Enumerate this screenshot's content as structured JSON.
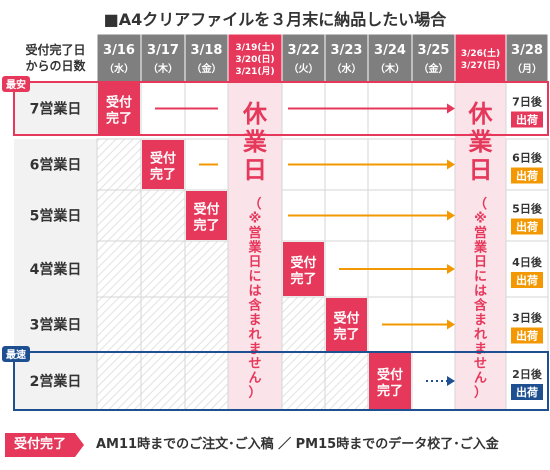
{
  "title": "■A4クリアファイルを３月末に納品したい場合",
  "corner_header": [
    "受付完了日",
    "からの日数"
  ],
  "date_columns": [
    {
      "date": "3/16",
      "weekday": "（水）",
      "holiday": false
    },
    {
      "date": "3/17",
      "weekday": "（木）",
      "holiday": false
    },
    {
      "date": "3/18",
      "weekday": "（金）",
      "holiday": false
    },
    {
      "lines": [
        "3/19(土)",
        "3/20(日)",
        "3/21(月)"
      ],
      "holiday": true
    },
    {
      "date": "3/22",
      "weekday": "（火）",
      "holiday": false
    },
    {
      "date": "3/23",
      "weekday": "（水）",
      "holiday": false
    },
    {
      "date": "3/24",
      "weekday": "（木）",
      "holiday": false
    },
    {
      "date": "3/25",
      "weekday": "（金）",
      "holiday": false
    },
    {
      "lines": [
        "3/26(土)",
        "3/27(日)"
      ],
      "holiday": true
    },
    {
      "date": "3/28",
      "weekday": "（月）",
      "holiday": false
    }
  ],
  "rows": [
    {
      "label": "7営業日",
      "tag": "最安",
      "tag_color": "#e6385b",
      "accept_col": 0,
      "arrow_color": "#e6385b",
      "dots": false,
      "result": "7日後",
      "ship": "出荷",
      "ship_color": "#e6385b"
    },
    {
      "label": "6営業日",
      "tag": "",
      "accept_col": 1,
      "arrow_color": "#f39800",
      "dots": false,
      "result": "6日後",
      "ship": "出荷",
      "ship_color": "#f39800"
    },
    {
      "label": "5営業日",
      "tag": "",
      "accept_col": 2,
      "arrow_color": "#f39800",
      "dots": false,
      "result": "5日後",
      "ship": "出荷",
      "ship_color": "#f39800"
    },
    {
      "label": "4営業日",
      "tag": "",
      "accept_col": 4,
      "arrow_color": "#f39800",
      "dots": false,
      "result": "4日後",
      "ship": "出荷",
      "ship_color": "#f39800"
    },
    {
      "label": "3営業日",
      "tag": "",
      "accept_col": 5,
      "arrow_color": "#f39800",
      "dots": false,
      "result": "3日後",
      "ship": "出荷",
      "ship_color": "#f39800"
    },
    {
      "label": "2営業日",
      "tag": "最速",
      "tag_color": "#1d4f91",
      "accept_col": 6,
      "arrow_color": "#1d4f91",
      "dots": true,
      "result": "2日後",
      "ship": "出荷",
      "ship_color": "#1d4f91"
    }
  ],
  "accept_label": [
    "受付",
    "完了"
  ],
  "holiday_main": [
    "休",
    "業",
    "日"
  ],
  "holiday_note": [
    "（",
    "※",
    "営",
    "業",
    "日",
    "に",
    "は",
    "含",
    "ま",
    "れ",
    "ま",
    "せ",
    "ん",
    "）"
  ],
  "legend": {
    "badge": "受付完了",
    "text": "AM11時までのご注文･ご入稿 ／ PM15時までのデータ校了･ご入金"
  },
  "colors": {
    "accept": "#e6385b",
    "header_bg": "#7f7f7f",
    "holiday_header_bg": "#e6385b",
    "holiday_bg": "#fbe3ea",
    "holiday_text": "#e6385b",
    "row_label_bg": "#f2f2f2",
    "grid": "#d5d5d5",
    "row7_border": "#e6385b",
    "row2_border": "#1d4f91"
  }
}
